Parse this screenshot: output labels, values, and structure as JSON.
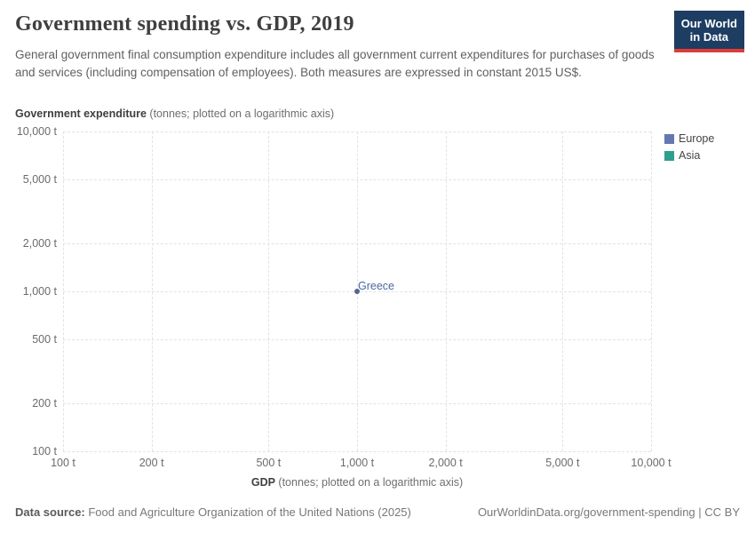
{
  "header": {
    "title": "Government spending vs. GDP, 2019",
    "subtitle": "General government final consumption expenditure includes all government current expenditures for purchases of goods and services (including compensation of employees). Both measures are expressed in constant 2015 US$.",
    "logo": {
      "line1": "Our World",
      "line2": "in Data",
      "bg_color": "#1d3d63",
      "bar_color": "#dc3e36"
    }
  },
  "chart_data": {
    "type": "scatter",
    "title": "Government spending vs. GDP, 2019",
    "x_scale": "log",
    "y_scale": "log",
    "xlim": [
      100,
      10000
    ],
    "ylim": [
      100,
      10000
    ],
    "grid": "dashed",
    "xlabel_bold": "GDP",
    "xlabel_rest": " (tonnes; plotted on a logarithmic axis)",
    "ylabel_bold": "Government expenditure",
    "ylabel_rest": " (tonnes; plotted on a logarithmic axis)",
    "x_ticks": [
      {
        "value": 100,
        "label": "100 t"
      },
      {
        "value": 200,
        "label": "200 t"
      },
      {
        "value": 500,
        "label": "500 t"
      },
      {
        "value": 1000,
        "label": "1,000 t"
      },
      {
        "value": 2000,
        "label": "2,000 t"
      },
      {
        "value": 5000,
        "label": "5,000 t"
      },
      {
        "value": 10000,
        "label": "10,000 t"
      }
    ],
    "y_ticks": [
      {
        "value": 100,
        "label": "100 t"
      },
      {
        "value": 200,
        "label": "200 t"
      },
      {
        "value": 500,
        "label": "500 t"
      },
      {
        "value": 1000,
        "label": "1,000 t"
      },
      {
        "value": 2000,
        "label": "2,000 t"
      },
      {
        "value": 5000,
        "label": "5,000 t"
      },
      {
        "value": 10000,
        "label": "10,000 t"
      }
    ],
    "legend": [
      {
        "label": "Europe",
        "color": "#6577b3"
      },
      {
        "label": "Asia",
        "color": "#2f9e8f"
      }
    ],
    "legend_position": "right",
    "points": [
      {
        "label": "Greece",
        "x": 1000,
        "y": 1000,
        "series": "Europe",
        "dot_color": "#56678f",
        "label_color": "#4d689e"
      }
    ]
  },
  "footer": {
    "source_label": "Data source:",
    "source_text": " Food and Agriculture Organization of the United Nations (2025)",
    "link": "OurWorldinData.org/government-spending | CC BY"
  }
}
